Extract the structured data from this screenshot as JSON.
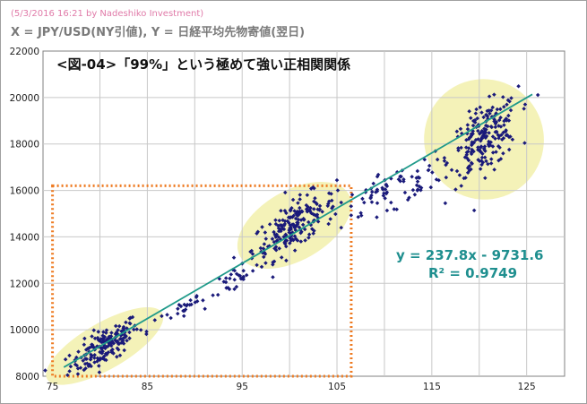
{
  "header": {
    "credit": "(5/3/2016 16:21 by Nadeshiko Investment)",
    "axes_description": "X = JPY/USD(NY引値), Y = 日経平均先物寄値(翌日)"
  },
  "colors": {
    "points": "#1a1a7a",
    "trendline": "#1f9a8a",
    "highlight_ellipse": "#f4f2b8",
    "highlight_box": "#ee7b22",
    "equation": "#1f8f8f",
    "grid": "#c8c8c8"
  },
  "chart_data": {
    "type": "scatter",
    "title": "<図-04>「99%」という極めて強い正相関関係",
    "xlim": [
      74,
      129
    ],
    "ylim": [
      8000,
      22000
    ],
    "x_ticks": [
      75,
      85,
      95,
      105,
      115,
      125
    ],
    "y_ticks": [
      8000,
      10000,
      12000,
      14000,
      16000,
      18000,
      20000,
      22000
    ],
    "grid": true,
    "trendline": {
      "slope": 237.8,
      "intercept": -9731.6,
      "x_range": [
        76.2,
        125.6
      ],
      "equation_label": "y = 237.8x - 9731.6",
      "r2_label": "R² = 0.9749"
    },
    "highlight_box": {
      "x": [
        75,
        106.5
      ],
      "y": [
        8000,
        16200
      ]
    },
    "clusters": [
      {
        "cx": 80.5,
        "cy": 9300,
        "rx": 7.0,
        "ry": 1000,
        "n": 180,
        "sx": 1.8,
        "sy": 380,
        "highlight": true
      },
      {
        "cx": 100.5,
        "cy": 14500,
        "rx": 6.6,
        "ry": 1500,
        "n": 200,
        "sx": 2.2,
        "sy": 500,
        "highlight": true
      },
      {
        "cx": 120.5,
        "cy": 18200,
        "rx": 6.3,
        "ry": 2600,
        "n": 210,
        "sx": 1.8,
        "sy": 700,
        "highlight": true
      },
      {
        "cx": 89.5,
        "cy": 11000,
        "rx": 3,
        "ry": 500,
        "n": 30,
        "sx": 2.2,
        "sy": 260,
        "highlight": false
      },
      {
        "cx": 94.5,
        "cy": 12300,
        "rx": 2,
        "ry": 500,
        "n": 25,
        "sx": 1.2,
        "sy": 320,
        "highlight": false
      },
      {
        "cx": 109.5,
        "cy": 16000,
        "rx": 3,
        "ry": 700,
        "n": 40,
        "sx": 1.6,
        "sy": 380,
        "highlight": false
      },
      {
        "cx": 113.5,
        "cy": 16400,
        "rx": 2,
        "ry": 700,
        "n": 35,
        "sx": 1.3,
        "sy": 420,
        "highlight": false
      }
    ]
  }
}
